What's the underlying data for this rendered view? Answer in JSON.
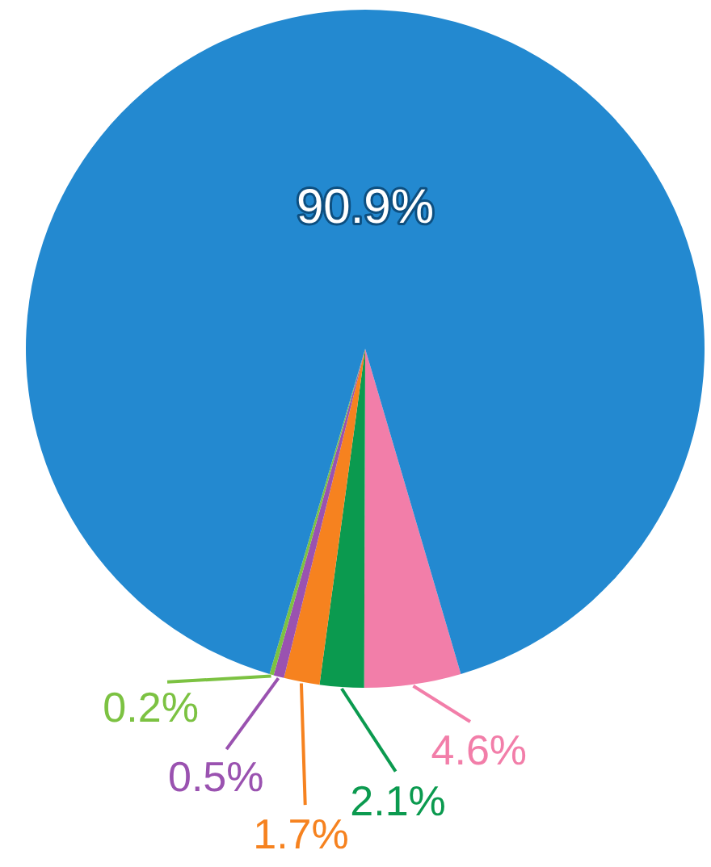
{
  "chart_data": {
    "type": "pie",
    "categories": [
      null,
      null,
      null,
      null,
      null,
      null
    ],
    "values": [
      4.6,
      2.1,
      1.7,
      0.5,
      0.2,
      90.9
    ],
    "colors": [
      "#f27ea9",
      "#0b9a4f",
      "#f6821f",
      "#9a52b0",
      "#7cc242",
      "#2389d0"
    ],
    "value_labels": [
      "4.6%",
      "2.1%",
      "1.7%",
      "0.5%",
      "0.2%",
      "90.9%"
    ],
    "legend": false
  }
}
